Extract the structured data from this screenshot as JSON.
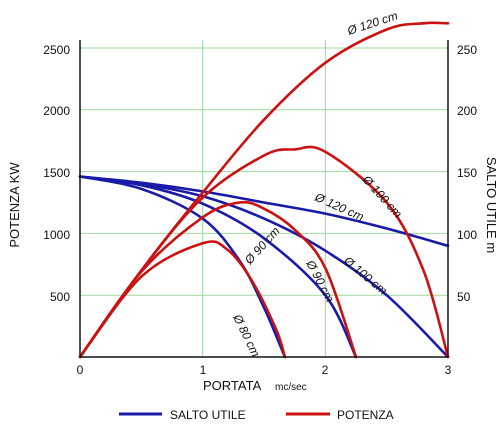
{
  "chart_data": {
    "type": "line",
    "xlabel": "PORTATA",
    "xunit": "mc/sec",
    "ylabel_left": "POTENZA KW",
    "ylabel_right": "SALTO UTILE m",
    "xlim": [
      0,
      3
    ],
    "ylim_left": [
      0,
      2500
    ],
    "ylim_right": [
      0,
      250
    ],
    "x_ticks": [
      "0",
      "1",
      "2",
      "3"
    ],
    "y_left_ticks": [
      "500",
      "1000",
      "1500",
      "2000",
      "2500"
    ],
    "y_right_ticks": [
      "50",
      "100",
      "150",
      "200",
      "250"
    ],
    "grid": true,
    "legend": {
      "placement": "bottom",
      "items": [
        {
          "label": "SALTO UTILE",
          "color": "#1a1aa8"
        },
        {
          "label": "POTENZA",
          "color": "#cc1111"
        }
      ]
    },
    "colors": {
      "salto": "#1a1aa8",
      "potenza": "#cc1111",
      "grid": "#9ed89e"
    },
    "series": [
      {
        "group": "salto",
        "axis": "right",
        "label": "Ø 120 cm",
        "points": [
          [
            0,
            146
          ],
          [
            0.5,
            141
          ],
          [
            1,
            134
          ],
          [
            1.5,
            125
          ],
          [
            2,
            116
          ],
          [
            2.5,
            104
          ],
          [
            3,
            90
          ]
        ]
      },
      {
        "group": "salto",
        "axis": "right",
        "label": "Ø 100 cm",
        "points": [
          [
            0,
            146
          ],
          [
            0.5,
            140
          ],
          [
            1,
            130
          ],
          [
            1.5,
            112
          ],
          [
            2,
            86
          ],
          [
            2.5,
            50
          ],
          [
            3,
            0
          ]
        ]
      },
      {
        "group": "salto",
        "axis": "right",
        "label": "Ø 90 cm",
        "points": [
          [
            0,
            146
          ],
          [
            0.5,
            139
          ],
          [
            1,
            124
          ],
          [
            1.5,
            96
          ],
          [
            2,
            50
          ],
          [
            2.25,
            0
          ]
        ]
      },
      {
        "group": "salto",
        "axis": "right",
        "label": "Ø 80 cm",
        "points": [
          [
            0,
            146
          ],
          [
            0.5,
            136
          ],
          [
            1,
            112
          ],
          [
            1.3,
            78
          ],
          [
            1.5,
            40
          ],
          [
            1.67,
            0
          ]
        ]
      },
      {
        "group": "potenza",
        "axis": "left",
        "label": "Ø 120 cm",
        "points": [
          [
            0,
            0
          ],
          [
            0.5,
            700
          ],
          [
            1,
            1330
          ],
          [
            1.5,
            1920
          ],
          [
            2,
            2380
          ],
          [
            2.5,
            2650
          ],
          [
            2.8,
            2700
          ],
          [
            3,
            2700
          ]
        ]
      },
      {
        "group": "potenza",
        "axis": "left",
        "label": "Ø 100 cm",
        "points": [
          [
            0,
            0
          ],
          [
            0.5,
            700
          ],
          [
            1,
            1290
          ],
          [
            1.5,
            1630
          ],
          [
            1.75,
            1680
          ],
          [
            2,
            1660
          ],
          [
            2.5,
            1250
          ],
          [
            2.8,
            700
          ],
          [
            3,
            0
          ]
        ]
      },
      {
        "group": "potenza",
        "axis": "left",
        "label": "Ø 90 cm",
        "points": [
          [
            0,
            0
          ],
          [
            0.5,
            690
          ],
          [
            1,
            1130
          ],
          [
            1.3,
            1250
          ],
          [
            1.5,
            1200
          ],
          [
            1.75,
            1030
          ],
          [
            2,
            720
          ],
          [
            2.25,
            0
          ]
        ]
      },
      {
        "group": "potenza",
        "axis": "left",
        "label": "Ø 80 cm",
        "points": [
          [
            0,
            0
          ],
          [
            0.5,
            650
          ],
          [
            1,
            920
          ],
          [
            1.2,
            870
          ],
          [
            1.4,
            620
          ],
          [
            1.6,
            220
          ],
          [
            1.67,
            0
          ]
        ]
      }
    ],
    "curve_labels": [
      {
        "text": "Ø 120 cm",
        "group": "potenza"
      },
      {
        "text": "Ø 100 cm",
        "group": "potenza"
      },
      {
        "text": "Ø 120 cm",
        "group": "salto"
      },
      {
        "text": "Ø 100 cm",
        "group": "salto"
      },
      {
        "text": "Ø 90 cm",
        "group": "salto"
      },
      {
        "text": "Ø 90 cm",
        "group": "potenza"
      },
      {
        "text": "Ø 80 cm",
        "group": "salto"
      }
    ]
  }
}
